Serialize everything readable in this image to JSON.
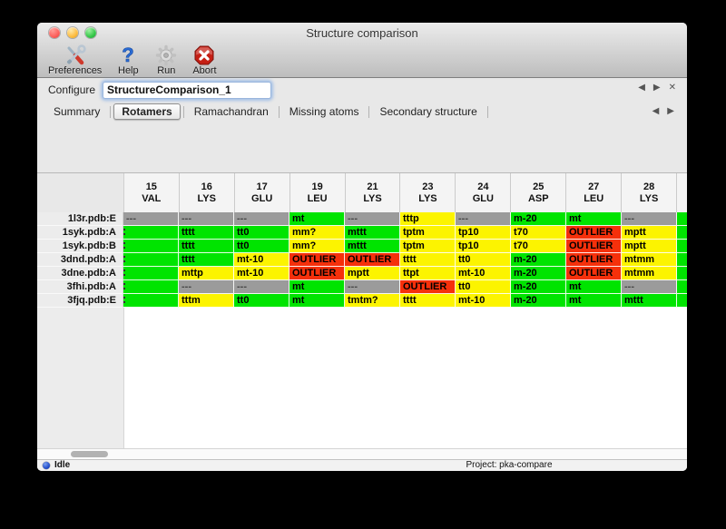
{
  "window": {
    "title": "Structure comparison"
  },
  "toolbar": {
    "buttons": [
      {
        "label": "Preferences",
        "icon": "tools-icon"
      },
      {
        "label": "Help",
        "icon": "help-icon"
      },
      {
        "label": "Run",
        "icon": "gear-icon"
      },
      {
        "label": "Abort",
        "icon": "abort-icon"
      }
    ]
  },
  "configure": {
    "label": "Configure",
    "value": "StructureComparison_1"
  },
  "pane_controls": {
    "prev": "◀",
    "next": "▶",
    "close": "✕"
  },
  "tabs": [
    {
      "label": "Summary",
      "selected": false
    },
    {
      "label": "Rotamers",
      "selected": true
    },
    {
      "label": "Ramachandran",
      "selected": false
    },
    {
      "label": "Missing atoms",
      "selected": false
    },
    {
      "label": "Secondary structure",
      "selected": false
    }
  ],
  "tab_controls": {
    "prev": "◀",
    "next": "▶"
  },
  "colors": {
    "green": "#00E400",
    "yellow": "#FCF400",
    "red": "#F5300B",
    "gray": "#9B9B9B"
  },
  "table": {
    "columns": [
      {
        "num": "15",
        "res": "VAL"
      },
      {
        "num": "16",
        "res": "LYS"
      },
      {
        "num": "17",
        "res": "GLU"
      },
      {
        "num": "19",
        "res": "LEU"
      },
      {
        "num": "21",
        "res": "LYS"
      },
      {
        "num": "23",
        "res": "LYS"
      },
      {
        "num": "24",
        "res": "GLU"
      },
      {
        "num": "25",
        "res": "ASP"
      },
      {
        "num": "27",
        "res": "LEU"
      },
      {
        "num": "28",
        "res": "LYS"
      }
    ],
    "rows": [
      {
        "label": "1l3r.pdb:E",
        "cells": [
          {
            "t": "---",
            "c": "gray"
          },
          {
            "t": "---",
            "c": "gray"
          },
          {
            "t": "---",
            "c": "gray"
          },
          {
            "t": "mt",
            "c": "green"
          },
          {
            "t": "---",
            "c": "gray"
          },
          {
            "t": "tttp",
            "c": "yellow"
          },
          {
            "t": "---",
            "c": "gray"
          },
          {
            "t": "m-20",
            "c": "green"
          },
          {
            "t": "mt",
            "c": "green"
          },
          {
            "t": "---",
            "c": "gray"
          }
        ],
        "sliver": "green"
      },
      {
        "label": "1syk.pdb:A",
        "cells": [
          {
            "t": "",
            "c": "green",
            "m": true
          },
          {
            "t": "tttt",
            "c": "green"
          },
          {
            "t": "tt0",
            "c": "green"
          },
          {
            "t": "mm?",
            "c": "yellow"
          },
          {
            "t": "mttt",
            "c": "green"
          },
          {
            "t": "tptm",
            "c": "yellow"
          },
          {
            "t": "tp10",
            "c": "yellow"
          },
          {
            "t": "t70",
            "c": "yellow"
          },
          {
            "t": "OUTLIER",
            "c": "red"
          },
          {
            "t": "mptt",
            "c": "yellow"
          }
        ],
        "sliver": "green"
      },
      {
        "label": "1syk.pdb:B",
        "cells": [
          {
            "t": "",
            "c": "green",
            "m": true
          },
          {
            "t": "tttt",
            "c": "green"
          },
          {
            "t": "tt0",
            "c": "green"
          },
          {
            "t": "mm?",
            "c": "yellow"
          },
          {
            "t": "mttt",
            "c": "green"
          },
          {
            "t": "tptm",
            "c": "yellow"
          },
          {
            "t": "tp10",
            "c": "yellow"
          },
          {
            "t": "t70",
            "c": "yellow"
          },
          {
            "t": "OUTLIER",
            "c": "red"
          },
          {
            "t": "mptt",
            "c": "yellow"
          }
        ],
        "sliver": "green"
      },
      {
        "label": "3dnd.pdb:A",
        "cells": [
          {
            "t": "",
            "c": "green",
            "m": true
          },
          {
            "t": "tttt",
            "c": "green"
          },
          {
            "t": "mt-10",
            "c": "yellow"
          },
          {
            "t": "OUTLIER",
            "c": "red"
          },
          {
            "t": "OUTLIER",
            "c": "red"
          },
          {
            "t": "tttt",
            "c": "yellow"
          },
          {
            "t": "tt0",
            "c": "yellow"
          },
          {
            "t": "m-20",
            "c": "green"
          },
          {
            "t": "OUTLIER",
            "c": "red"
          },
          {
            "t": "mtmm",
            "c": "yellow"
          }
        ],
        "sliver": "green"
      },
      {
        "label": "3dne.pdb:A",
        "cells": [
          {
            "t": "",
            "c": "green",
            "m": true
          },
          {
            "t": "mttp",
            "c": "yellow"
          },
          {
            "t": "mt-10",
            "c": "yellow"
          },
          {
            "t": "OUTLIER",
            "c": "red"
          },
          {
            "t": "mptt",
            "c": "yellow"
          },
          {
            "t": "ttpt",
            "c": "yellow"
          },
          {
            "t": "mt-10",
            "c": "yellow"
          },
          {
            "t": "m-20",
            "c": "green"
          },
          {
            "t": "OUTLIER",
            "c": "red"
          },
          {
            "t": "mtmm",
            "c": "yellow"
          }
        ],
        "sliver": "green"
      },
      {
        "label": "3fhi.pdb:A",
        "cells": [
          {
            "t": "",
            "c": "green",
            "m": true
          },
          {
            "t": "---",
            "c": "gray"
          },
          {
            "t": "---",
            "c": "gray"
          },
          {
            "t": "mt",
            "c": "green"
          },
          {
            "t": "---",
            "c": "gray"
          },
          {
            "t": "OUTLIER",
            "c": "red"
          },
          {
            "t": "tt0",
            "c": "yellow"
          },
          {
            "t": "m-20",
            "c": "green"
          },
          {
            "t": "mt",
            "c": "green"
          },
          {
            "t": "---",
            "c": "gray"
          }
        ],
        "sliver": "green"
      },
      {
        "label": "3fjq.pdb:E",
        "cells": [
          {
            "t": "",
            "c": "green",
            "m": true
          },
          {
            "t": "tttm",
            "c": "yellow"
          },
          {
            "t": "tt0",
            "c": "green"
          },
          {
            "t": "mt",
            "c": "green"
          },
          {
            "t": "tmtm?",
            "c": "yellow"
          },
          {
            "t": "tttt",
            "c": "yellow"
          },
          {
            "t": "mt-10",
            "c": "yellow"
          },
          {
            "t": "m-20",
            "c": "green"
          },
          {
            "t": "mt",
            "c": "green"
          },
          {
            "t": "mttt",
            "c": "green"
          }
        ],
        "sliver": "green"
      }
    ]
  },
  "statusbar": {
    "state": "Idle",
    "project": "Project: pka-compare"
  }
}
